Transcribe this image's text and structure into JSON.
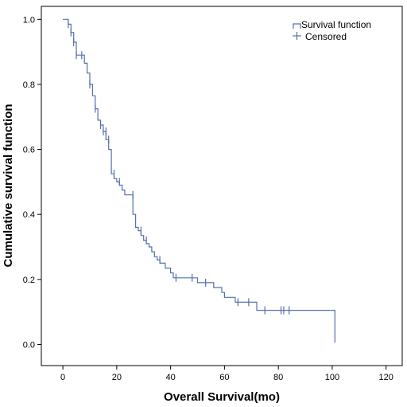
{
  "chart_data": {
    "type": "line",
    "xlabel": "Overall Survival(mo)",
    "ylabel": "Cumulative survival function",
    "xlim": [
      -8,
      126
    ],
    "ylim": [
      -0.065,
      1.04
    ],
    "x_ticks": [
      0,
      20,
      40,
      60,
      80,
      100,
      120
    ],
    "y_ticks": [
      0.0,
      0.2,
      0.4,
      0.6,
      0.8,
      1.0
    ],
    "y_tick_labels": [
      "0.0",
      "0.2",
      "0.4",
      "0.6",
      "0.8",
      "1.0"
    ],
    "grid": false,
    "legend_position": "top-right",
    "legend": [
      "Survival function",
      "Censored"
    ],
    "line_color": "#5570ad",
    "series": [
      {
        "name": "Survival function",
        "x": [
          0,
          2,
          2,
          3,
          3,
          4,
          4,
          5,
          5,
          6,
          6,
          8,
          8,
          9,
          9,
          10,
          10,
          11,
          11,
          12,
          12,
          13,
          13,
          14,
          14,
          15,
          15,
          16,
          16,
          17,
          17,
          18,
          18,
          19,
          19,
          20,
          20,
          21,
          21,
          22,
          22,
          23,
          23,
          24,
          24,
          26,
          26,
          27,
          27,
          28,
          28,
          29,
          29,
          30,
          30,
          31,
          31,
          32,
          32,
          33,
          33,
          34,
          34,
          35,
          35,
          36,
          36,
          38,
          38,
          40,
          40,
          41,
          41,
          42,
          42,
          50,
          50,
          52,
          52,
          56,
          56,
          59,
          59,
          60,
          60,
          64,
          64,
          66,
          66,
          72,
          72,
          101,
          101
        ],
        "y": [
          1.0,
          1.0,
          0.985,
          0.985,
          0.96,
          0.96,
          0.93,
          0.93,
          0.89,
          0.89,
          0.89,
          0.89,
          0.865,
          0.865,
          0.835,
          0.835,
          0.8,
          0.8,
          0.765,
          0.765,
          0.725,
          0.725,
          0.69,
          0.69,
          0.675,
          0.675,
          0.655,
          0.655,
          0.63,
          0.63,
          0.6,
          0.6,
          0.525,
          0.525,
          0.51,
          0.51,
          0.5,
          0.5,
          0.49,
          0.49,
          0.475,
          0.475,
          0.46,
          0.46,
          0.46,
          0.46,
          0.4,
          0.4,
          0.36,
          0.36,
          0.35,
          0.35,
          0.335,
          0.335,
          0.32,
          0.32,
          0.31,
          0.31,
          0.3,
          0.3,
          0.285,
          0.285,
          0.27,
          0.27,
          0.26,
          0.26,
          0.25,
          0.25,
          0.235,
          0.235,
          0.22,
          0.22,
          0.205,
          0.205,
          0.205,
          0.205,
          0.19,
          0.19,
          0.19,
          0.19,
          0.175,
          0.175,
          0.16,
          0.16,
          0.145,
          0.145,
          0.13,
          0.13,
          0.13,
          0.13,
          0.105,
          0.105,
          0.005
        ]
      },
      {
        "name": "Censored",
        "x": [
          2,
          3,
          4,
          5,
          7,
          10,
          12,
          14,
          15,
          16,
          17,
          19,
          21,
          26,
          29,
          31,
          36,
          42,
          48,
          53,
          65,
          69,
          75,
          81,
          82,
          84
        ],
        "y": [
          0.985,
          0.96,
          0.93,
          0.89,
          0.89,
          0.8,
          0.725,
          0.675,
          0.655,
          0.655,
          0.63,
          0.525,
          0.5,
          0.46,
          0.35,
          0.32,
          0.26,
          0.205,
          0.205,
          0.19,
          0.13,
          0.13,
          0.105,
          0.105,
          0.105,
          0.105
        ]
      }
    ]
  }
}
